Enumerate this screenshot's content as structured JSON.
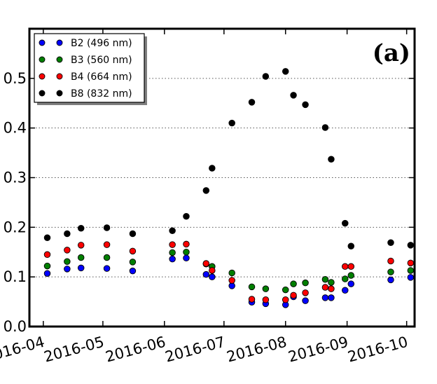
{
  "chart_data": {
    "type": "scatter",
    "panel_label": "(a)",
    "title": "",
    "xlabel": "",
    "ylabel": "",
    "xlim": [
      "2016-03-25",
      "2016-10-05"
    ],
    "ylim": [
      0.0,
      0.6
    ],
    "x_ticks": [
      "2016-04-01",
      "2016-05-01",
      "2016-06-01",
      "2016-07-01",
      "2016-08-01",
      "2016-09-01",
      "2016-10-01"
    ],
    "x_tick_labels": [
      "2016-04",
      "2016-05",
      "2016-06",
      "2016-07",
      "2016-08",
      "2016-09",
      "2016-10"
    ],
    "y_ticks": [
      0.0,
      0.1,
      0.2,
      0.3,
      0.4,
      0.5
    ],
    "y_tick_labels": [
      "0.0",
      "0.1",
      "0.2",
      "0.3",
      "0.4",
      "0.5"
    ],
    "grid": "horizontal-dotted",
    "legend_position": "top-left",
    "dates": [
      "2016-04-03",
      "2016-04-13",
      "2016-04-20",
      "2016-05-03",
      "2016-05-16",
      "2016-06-05",
      "2016-06-12",
      "2016-06-22",
      "2016-06-25",
      "2016-07-05",
      "2016-07-15",
      "2016-07-22",
      "2016-08-01",
      "2016-08-05",
      "2016-08-11",
      "2016-08-21",
      "2016-08-24",
      "2016-08-31",
      "2016-09-03",
      "2016-09-23",
      "2016-10-03"
    ],
    "series": [
      {
        "name": "B2 (496 nm)",
        "color": "#0000ff",
        "dates": [
          "2016-04-03",
          "2016-04-13",
          "2016-04-20",
          "2016-05-03",
          "2016-05-16",
          "2016-06-05",
          "2016-06-12",
          "2016-06-22",
          "2016-06-25",
          "2016-07-05",
          "2016-07-15",
          "2016-07-22",
          "2016-08-01",
          "2016-08-05",
          "2016-08-11",
          "2016-08-21",
          "2016-08-24",
          "2016-08-31",
          "2016-09-03",
          "2016-09-23",
          "2016-10-03"
        ],
        "values": [
          0.107,
          0.116,
          0.118,
          0.117,
          0.112,
          0.136,
          0.138,
          0.105,
          0.1,
          0.082,
          0.049,
          0.046,
          0.044,
          0.06,
          0.052,
          0.058,
          0.058,
          0.073,
          0.086,
          0.094,
          0.099
        ]
      },
      {
        "name": "B3 (560 nm)",
        "color": "#007f00",
        "dates": [
          "2016-04-03",
          "2016-04-13",
          "2016-04-20",
          "2016-05-03",
          "2016-05-16",
          "2016-06-05",
          "2016-06-12",
          "2016-06-22",
          "2016-06-25",
          "2016-07-05",
          "2016-07-15",
          "2016-07-22",
          "2016-08-01",
          "2016-08-05",
          "2016-08-11",
          "2016-08-21",
          "2016-08-24",
          "2016-08-31",
          "2016-09-03",
          "2016-09-23",
          "2016-10-03"
        ],
        "values": [
          0.122,
          0.131,
          0.139,
          0.139,
          0.13,
          0.149,
          0.15,
          0.126,
          0.121,
          0.108,
          0.08,
          0.076,
          0.074,
          0.086,
          0.088,
          0.095,
          0.089,
          0.096,
          0.103,
          0.11,
          0.113
        ]
      },
      {
        "name": "B4 (664 nm)",
        "color": "#ff0000",
        "dates": [
          "2016-04-03",
          "2016-04-13",
          "2016-04-20",
          "2016-05-03",
          "2016-05-16",
          "2016-06-05",
          "2016-06-12",
          "2016-06-22",
          "2016-06-25",
          "2016-07-05",
          "2016-07-15",
          "2016-07-22",
          "2016-08-01",
          "2016-08-05",
          "2016-08-11",
          "2016-08-21",
          "2016-08-24",
          "2016-08-31",
          "2016-09-03",
          "2016-09-23",
          "2016-10-03"
        ],
        "values": [
          0.145,
          0.154,
          0.164,
          0.165,
          0.152,
          0.165,
          0.166,
          0.127,
          0.113,
          0.093,
          0.055,
          0.054,
          0.054,
          0.063,
          0.068,
          0.079,
          0.076,
          0.121,
          0.121,
          0.132,
          0.128
        ]
      },
      {
        "name": "B8 (832 nm)",
        "color": "#000000",
        "dates": [
          "2016-04-03",
          "2016-04-13",
          "2016-04-20",
          "2016-05-03",
          "2016-05-16",
          "2016-06-05",
          "2016-06-12",
          "2016-06-22",
          "2016-06-25",
          "2016-07-05",
          "2016-07-15",
          "2016-07-22",
          "2016-08-01",
          "2016-08-05",
          "2016-08-11",
          "2016-08-21",
          "2016-08-24",
          "2016-08-31",
          "2016-09-03",
          "2016-09-23",
          "2016-10-03"
        ],
        "values": [
          0.179,
          0.187,
          0.198,
          0.199,
          0.187,
          0.193,
          0.222,
          0.274,
          0.319,
          0.41,
          0.452,
          0.504,
          0.514,
          0.466,
          0.447,
          0.401,
          0.337,
          0.208,
          0.162,
          0.169,
          0.164
        ]
      }
    ]
  }
}
